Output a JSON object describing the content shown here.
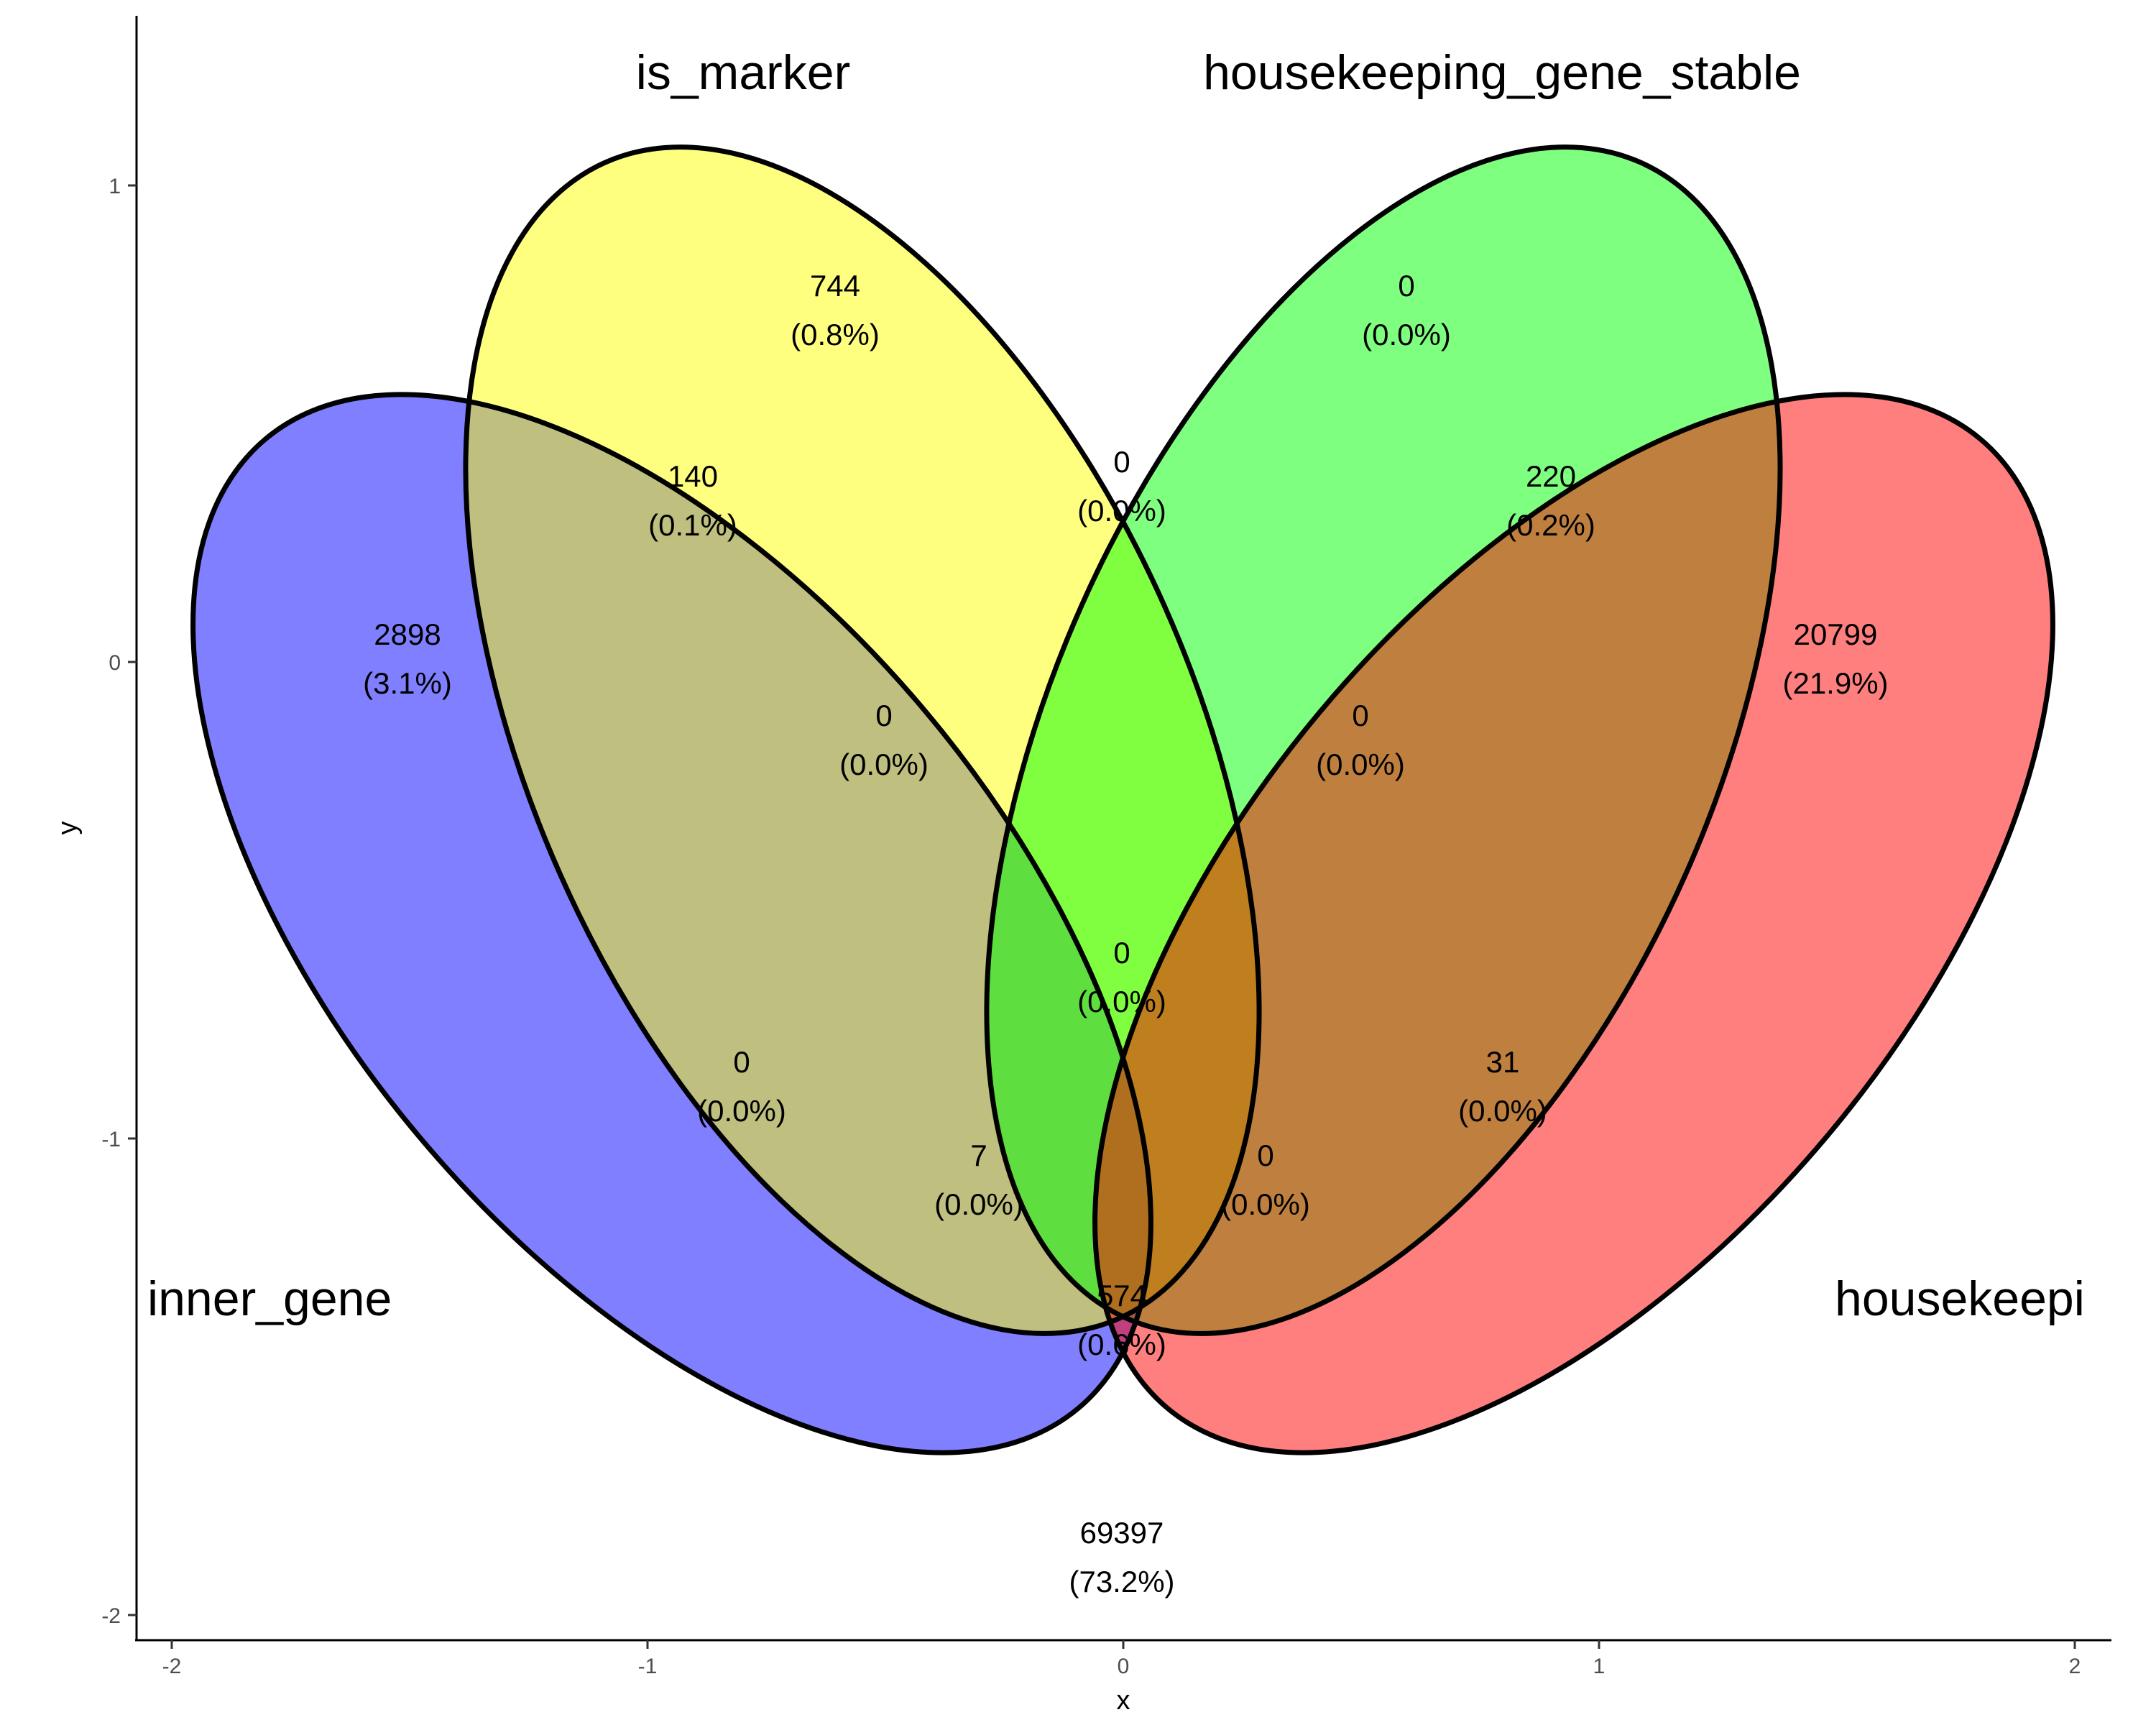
{
  "chart_data": {
    "type": "venn",
    "title": "",
    "xlabel": "x",
    "ylabel": "y",
    "xlim": [
      -2,
      2
    ],
    "ylim": [
      -2,
      1
    ],
    "x_ticks": [
      "-2",
      "-1",
      "0",
      "1",
      "2"
    ],
    "y_ticks": [
      "1",
      "0",
      "-1",
      "-2"
    ],
    "grid": false,
    "sets": [
      {
        "key": "A",
        "name": "inner_gene",
        "color": "#0000ff"
      },
      {
        "key": "B",
        "name": "is_marker",
        "color": "#ffff00"
      },
      {
        "key": "C",
        "name": "housekeeping_gene_stable",
        "color": "#00ff00"
      },
      {
        "key": "D",
        "name": "housekeepi",
        "color": "#ff0000"
      }
    ],
    "regions": [
      {
        "sets": "A",
        "count": "2898",
        "percent": "(3.1%)"
      },
      {
        "sets": "B",
        "count": "744",
        "percent": "(0.8%)"
      },
      {
        "sets": "C",
        "count": "0",
        "percent": "(0.0%)"
      },
      {
        "sets": "D",
        "count": "20799",
        "percent": "(21.9%)"
      },
      {
        "sets": "AB",
        "count": "140",
        "percent": "(0.1%)"
      },
      {
        "sets": "BC",
        "count": "0",
        "percent": "(0.0%)"
      },
      {
        "sets": "CD",
        "count": "220",
        "percent": "(0.2%)"
      },
      {
        "sets": "ABC",
        "count": "0",
        "percent": "(0.0%)"
      },
      {
        "sets": "BCD",
        "count": "0",
        "percent": "(0.0%)"
      },
      {
        "sets": "AC",
        "count": "0",
        "percent": "(0.0%)"
      },
      {
        "sets": "ABCD",
        "count": "0",
        "percent": "(0.0%)"
      },
      {
        "sets": "BD",
        "count": "31",
        "percent": "(0.0%)"
      },
      {
        "sets": "ACD",
        "count": "7",
        "percent": "(0.0%)"
      },
      {
        "sets": "ABD",
        "count": "0",
        "percent": "(0.0%)"
      },
      {
        "sets": "AD",
        "count": "574",
        "percent": "(0.6%)"
      },
      {
        "sets": "none",
        "count": "69397",
        "percent": "(73.2%)"
      }
    ]
  }
}
